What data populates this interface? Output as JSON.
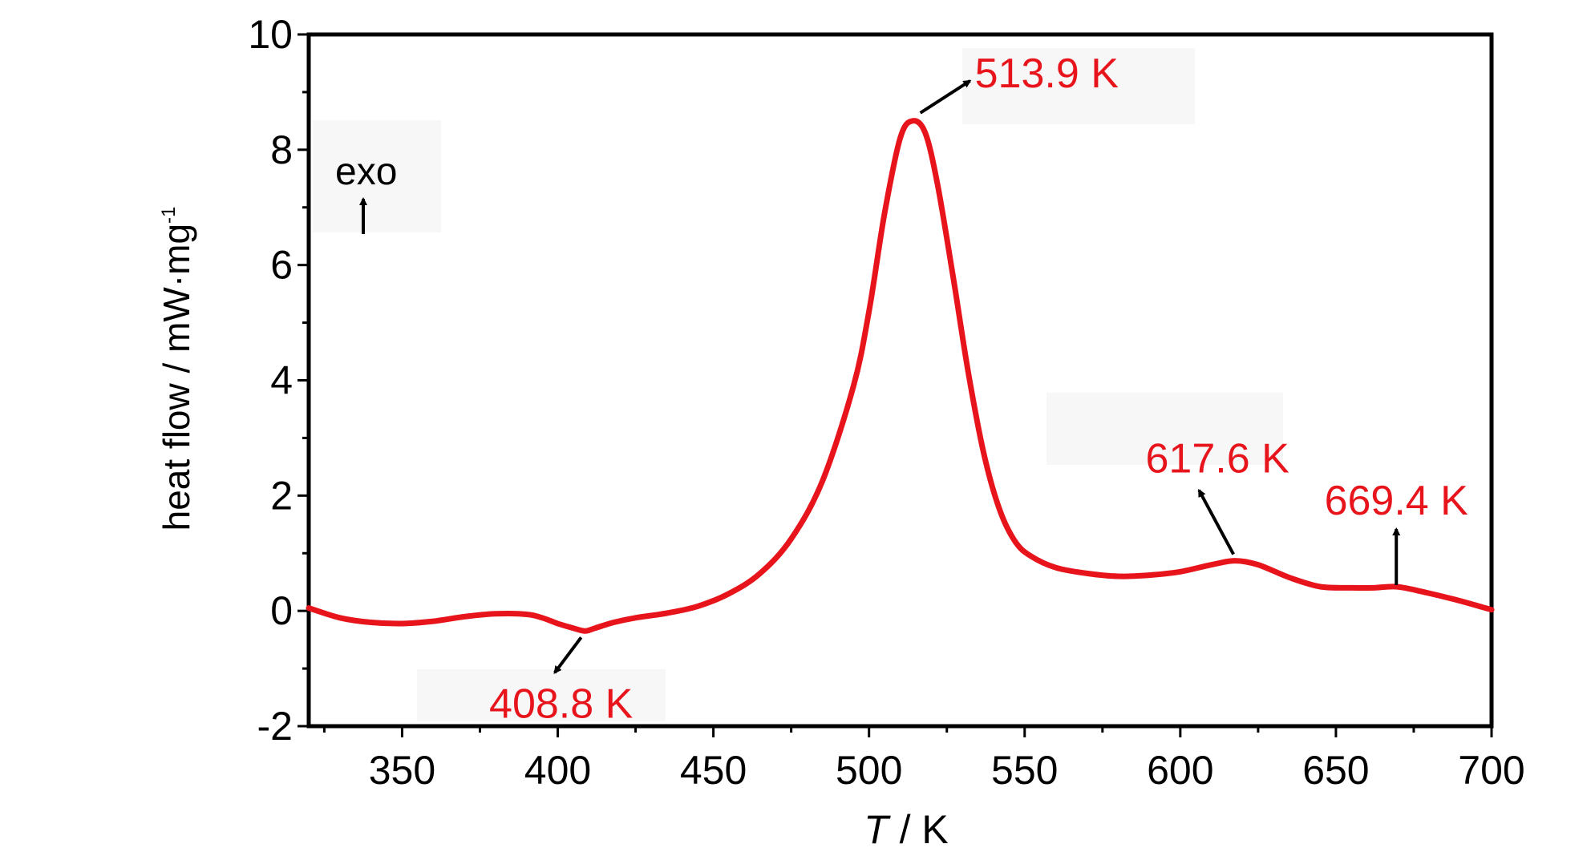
{
  "chart_data": {
    "type": "line",
    "xlabel_var": "T",
    "xlabel_unit": " / K",
    "ylabel": "heat flow / mW·mg",
    "ylabel_sup": "-1",
    "xlim": [
      320,
      700
    ],
    "ylim": [
      -2,
      10
    ],
    "x_ticks": [
      350,
      400,
      450,
      500,
      550,
      600,
      650,
      700
    ],
    "y_ticks": [
      -2,
      0,
      2,
      4,
      6,
      8,
      10
    ],
    "grid": false,
    "line_color": "#e8141c",
    "annotation_color": "#e8141c",
    "series": [
      {
        "x": [
          320,
          330,
          340,
          350,
          360,
          370,
          380,
          390,
          395,
          400,
          405,
          408.8,
          412,
          418,
          425,
          435,
          445,
          455,
          465,
          475,
          485,
          495,
          500,
          505,
          510,
          513.9,
          518,
          522,
          527,
          532,
          537,
          542,
          547,
          552,
          560,
          570,
          580,
          590,
          600,
          610,
          617.6,
          625,
          635,
          645,
          655,
          662,
          669.4,
          678,
          688,
          700
        ],
        "y": [
          0.05,
          -0.12,
          -0.2,
          -0.22,
          -0.18,
          -0.1,
          -0.05,
          -0.06,
          -0.12,
          -0.22,
          -0.3,
          -0.35,
          -0.3,
          -0.2,
          -0.12,
          -0.04,
          0.08,
          0.3,
          0.65,
          1.25,
          2.25,
          3.9,
          5.2,
          6.9,
          8.2,
          8.5,
          8.3,
          7.4,
          5.8,
          4.1,
          2.7,
          1.75,
          1.2,
          0.95,
          0.75,
          0.65,
          0.6,
          0.62,
          0.68,
          0.8,
          0.87,
          0.8,
          0.58,
          0.42,
          0.4,
          0.4,
          0.42,
          0.33,
          0.2,
          0.02
        ]
      }
    ],
    "annotations": [
      {
        "text": "513.9 K",
        "x": 513.9,
        "y": 8.5
      },
      {
        "text": "408.8 K",
        "x": 408.8,
        "y": -0.35
      },
      {
        "text": "617.6 K",
        "x": 617.6,
        "y": 0.87
      },
      {
        "text": "669.4 K",
        "x": 669.4,
        "y": 0.42
      }
    ],
    "exo_label": "exo"
  }
}
